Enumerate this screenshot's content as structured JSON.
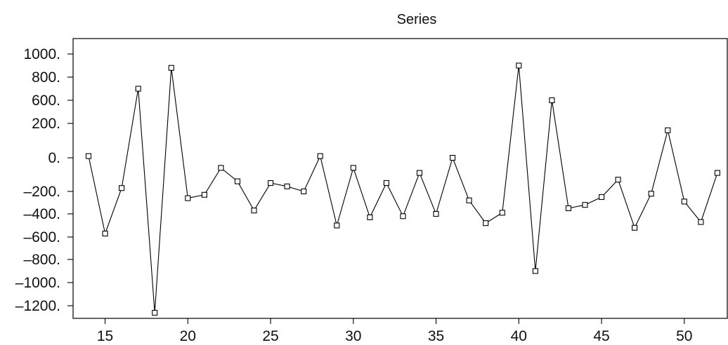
{
  "chart_data": {
    "type": "line",
    "title": "Series",
    "xlabel": "",
    "ylabel": "",
    "xlim": [
      13.5,
      52.5
    ],
    "ylim": [
      -1270,
      1100
    ],
    "x_ticks": [
      15,
      20,
      25,
      30,
      35,
      40,
      45,
      50
    ],
    "x_tick_labels": [
      "15",
      "20",
      "25",
      "30",
      "35",
      "40",
      "45",
      "50"
    ],
    "y_ticks": [
      1000,
      800,
      600,
      200,
      0,
      -200,
      -400,
      -600,
      -800,
      -1000,
      -1200
    ],
    "y_tick_labels": [
      "1000.",
      "800.",
      "600.",
      "200.",
      "0.",
      "–200.",
      "–400.",
      "–600.",
      "–800.",
      "–1000.",
      "–1200."
    ],
    "grid": false,
    "marker": "open-square",
    "series": [
      {
        "x": [
          14,
          15,
          16,
          17,
          18,
          19,
          20,
          21,
          22,
          23,
          24,
          25,
          26,
          27,
          28,
          29,
          30,
          31,
          32,
          33,
          34,
          35,
          36,
          37,
          38,
          39,
          40,
          41,
          42,
          43,
          44,
          45,
          46,
          47,
          48,
          49,
          50,
          51,
          52
        ],
        "values": [
          10,
          -570,
          -180,
          700,
          -1280,
          880,
          -260,
          -230,
          -60,
          -140,
          -370,
          -150,
          -170,
          -200,
          10,
          -500,
          -60,
          -430,
          -150,
          -420,
          -90,
          -400,
          0,
          -280,
          -480,
          -390,
          900,
          -900,
          600,
          -350,
          -320,
          -250,
          -130,
          -520,
          -220,
          160,
          -290,
          -470,
          -90
        ],
        "color": "#000000"
      }
    ]
  }
}
